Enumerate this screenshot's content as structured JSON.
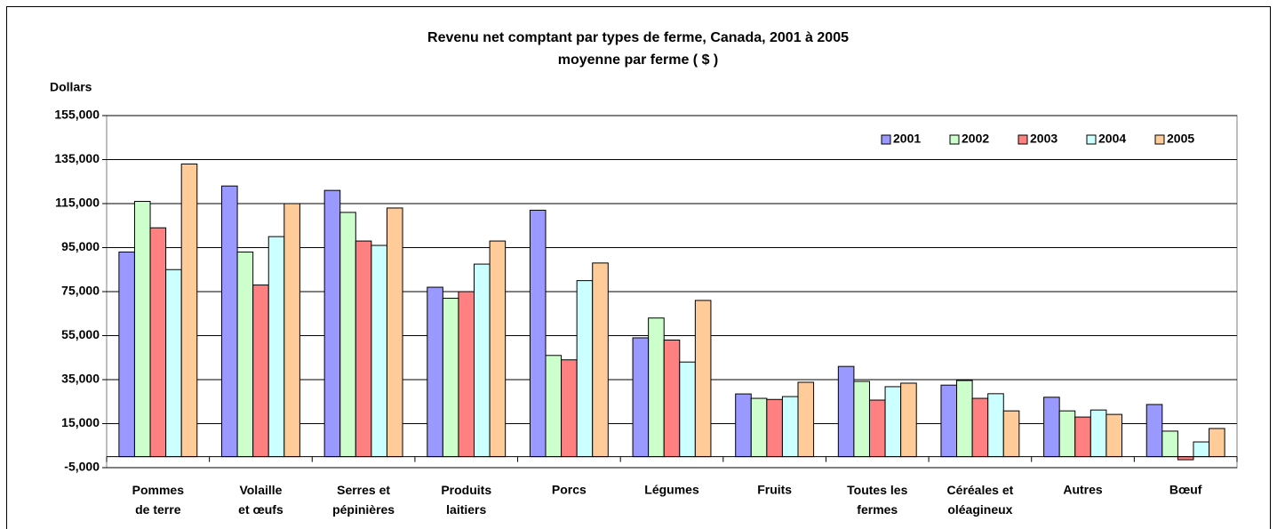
{
  "chart_data": {
    "type": "bar",
    "title": "Revenu net comptant par types de ferme, Canada, 2001 à 2005",
    "subtitle": "moyenne par ferme ( $ )",
    "y_label": "Dollars",
    "categories": [
      "Pommes\nde terre",
      "Volaille\net œufs",
      "Serres et\npépinières",
      "Produits\nlaitiers",
      "Porcs",
      "Légumes",
      "Fruits",
      "Toutes les\nfermes",
      "Céréales et\noléagineux",
      "Autres",
      "Bœuf"
    ],
    "series": [
      {
        "name": "2001",
        "color": "#9999ff",
        "values": [
          93000,
          123000,
          121000,
          77000,
          112000,
          54000,
          28500,
          41000,
          32500,
          27000,
          23700
        ]
      },
      {
        "name": "2002",
        "color": "#ccffcc",
        "values": [
          116000,
          93000,
          111000,
          72000,
          46000,
          63000,
          26500,
          34200,
          34600,
          20800,
          11600
        ]
      },
      {
        "name": "2003",
        "color": "#ff8080",
        "values": [
          104000,
          78000,
          98000,
          75000,
          44000,
          53000,
          26000,
          25700,
          26500,
          18000,
          -1400
        ]
      },
      {
        "name": "2004",
        "color": "#ccffff",
        "values": [
          85000,
          100000,
          96000,
          87500,
          80000,
          43000,
          27300,
          31800,
          28600,
          21200,
          6700
        ]
      },
      {
        "name": "2005",
        "color": "#ffcc99",
        "values": [
          133000,
          115000,
          113000,
          98000,
          88000,
          71000,
          33800,
          33400,
          20800,
          19200,
          12800
        ]
      }
    ],
    "ylim": [
      -5000,
      155000
    ],
    "yticks": [
      {
        "value": -5000,
        "label": "-5,000"
      },
      {
        "value": 15000,
        "label": "15,000"
      },
      {
        "value": 35000,
        "label": "35,000"
      },
      {
        "value": 55000,
        "label": "55,000"
      },
      {
        "value": 75000,
        "label": "75,000"
      },
      {
        "value": 95000,
        "label": "95,000"
      },
      {
        "value": 115000,
        "label": "115,000"
      },
      {
        "value": 135000,
        "label": "135,000"
      },
      {
        "value": 155000,
        "label": "155,000"
      }
    ],
    "grid": true,
    "legend": "top-right"
  }
}
